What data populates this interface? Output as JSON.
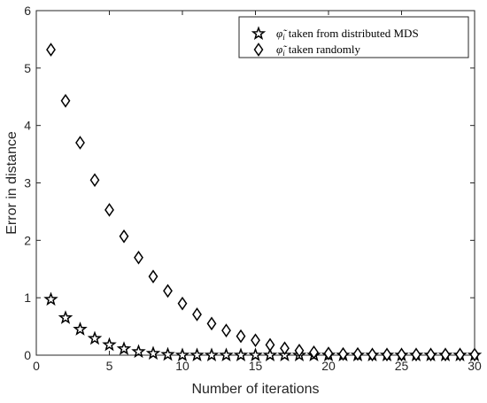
{
  "chart_data": {
    "type": "scatter",
    "xlabel": "Number of iterations",
    "ylabel": "Error in distance",
    "xlim": [
      0,
      30
    ],
    "ylim": [
      0,
      6
    ],
    "xticks": [
      0,
      5,
      10,
      15,
      20,
      25,
      30
    ],
    "yticks": [
      0,
      1,
      2,
      3,
      4,
      5,
      6
    ],
    "grid": false,
    "box": true,
    "legend_position": "top-right",
    "series": [
      {
        "name_symbol": "φ̃",
        "name_subscript": "i",
        "name_text": "taken from distributed MDS",
        "marker": "star",
        "color": "#000000",
        "x": [
          1,
          2,
          3,
          4,
          5,
          6,
          7,
          8,
          9,
          10,
          11,
          12,
          13,
          14,
          15,
          16,
          17,
          18,
          19,
          20,
          21,
          22,
          23,
          24,
          25,
          26,
          27,
          28,
          29,
          30
        ],
        "y": [
          0.97,
          0.65,
          0.45,
          0.29,
          0.18,
          0.11,
          0.06,
          0.03,
          0.01,
          0,
          0,
          0,
          0,
          0,
          0,
          0,
          0,
          0,
          0,
          0,
          0,
          0,
          0,
          0,
          0,
          0,
          0,
          0,
          0,
          0
        ]
      },
      {
        "name_symbol": "φ̃",
        "name_subscript": "i",
        "name_text": "taken randomly",
        "marker": "diamond",
        "color": "#000000",
        "x": [
          1,
          2,
          3,
          4,
          5,
          6,
          7,
          8,
          9,
          10,
          11,
          12,
          13,
          14,
          15,
          16,
          17,
          18,
          19,
          20,
          21,
          22,
          23,
          24,
          25,
          26,
          27,
          28,
          29,
          30
        ],
        "y": [
          5.32,
          4.43,
          3.7,
          3.05,
          2.53,
          2.07,
          1.7,
          1.37,
          1.12,
          0.9,
          0.71,
          0.55,
          0.43,
          0.33,
          0.26,
          0.18,
          0.12,
          0.08,
          0.05,
          0.03,
          0.02,
          0.02,
          0.01,
          0.01,
          0.01,
          0.01,
          0.01,
          0.01,
          0.01,
          0.01
        ]
      }
    ]
  }
}
